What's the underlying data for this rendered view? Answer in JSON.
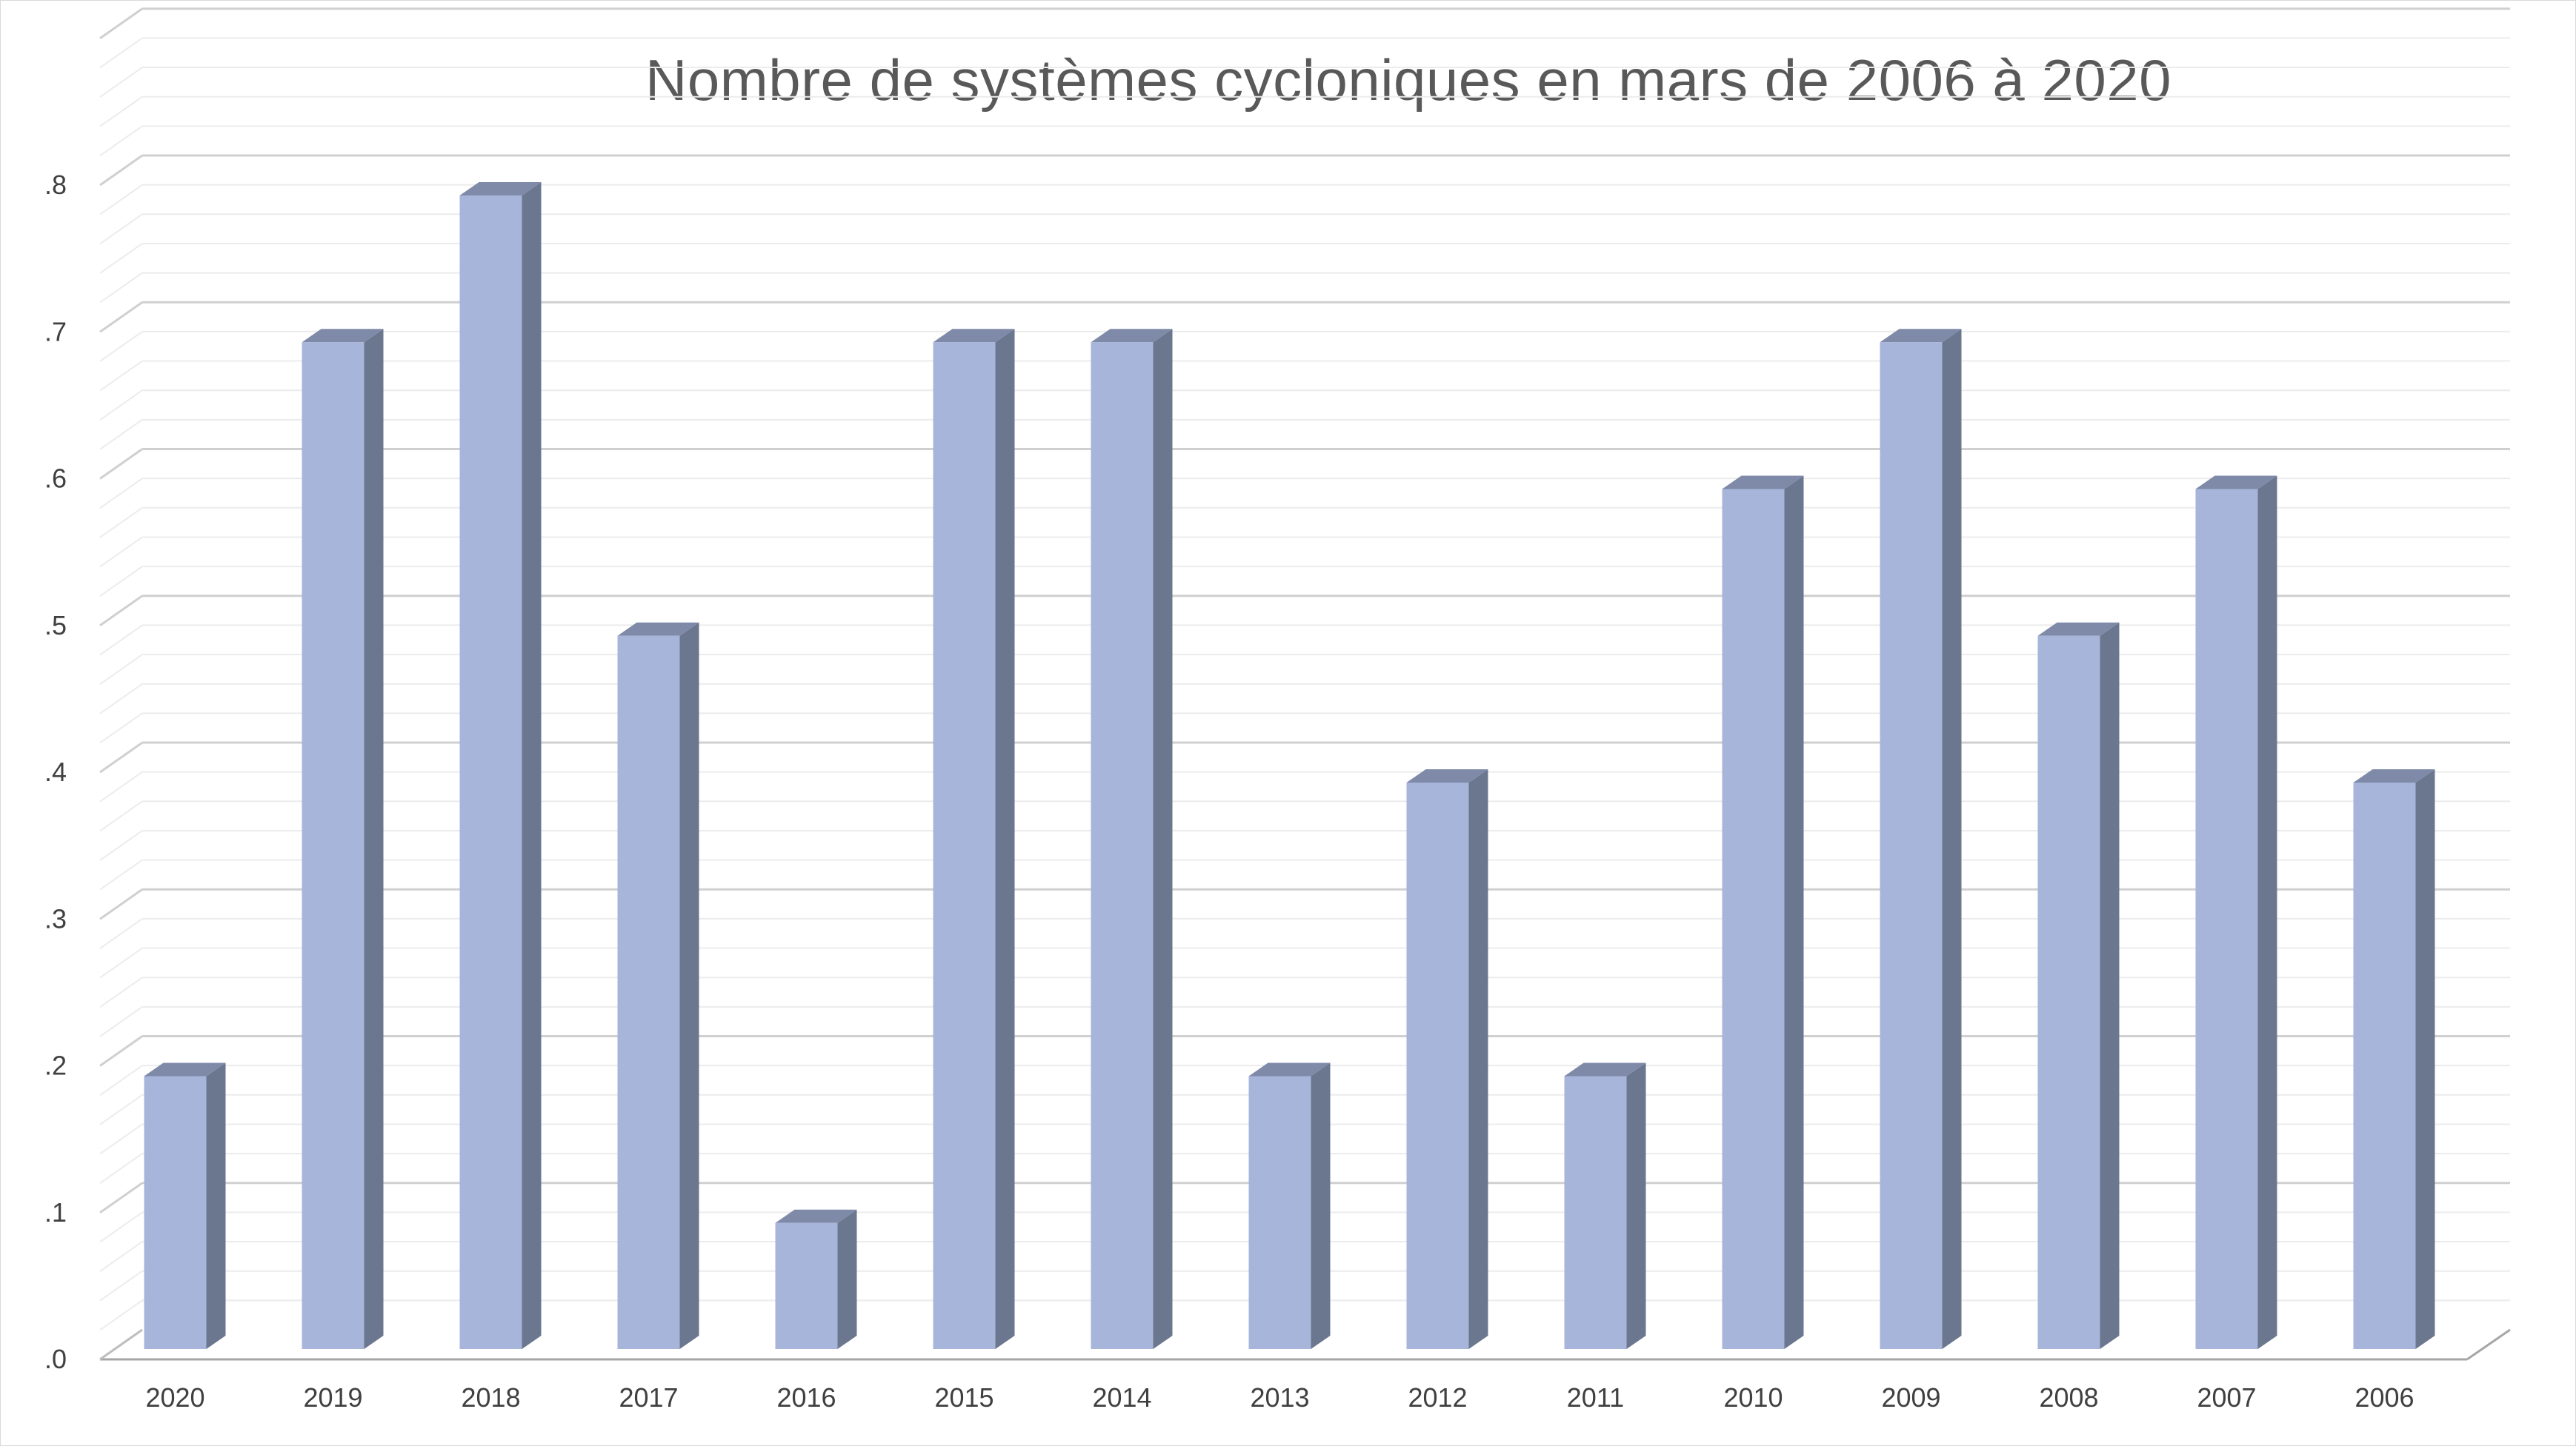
{
  "chart_data": {
    "type": "bar",
    "title": "Nombre de systèmes cycloniques en mars de 2006 à 2020",
    "xlabel": "",
    "ylabel": "",
    "categories": [
      "2020",
      "2019",
      "2018",
      "2017",
      "2016",
      "2015",
      "2014",
      "2013",
      "2012",
      "2011",
      "2010",
      "2009",
      "2008",
      "2007",
      "2006"
    ],
    "values": [
      0.2,
      0.7,
      0.8,
      0.5,
      0.1,
      0.7,
      0.7,
      0.2,
      0.4,
      0.2,
      0.6,
      0.7,
      0.5,
      0.6,
      0.4
    ],
    "y_ticks": [
      ".0",
      ".1",
      ".2",
      ".3",
      ".4",
      ".5",
      ".6",
      ".7",
      ".8"
    ],
    "ylim": [
      0,
      0.8
    ],
    "grid": true,
    "style": "3d-column",
    "legend": "none",
    "colors": {
      "bar_front": "#a8b5da",
      "bar_side": "#6b778f",
      "bar_top": "#7e8aa8",
      "gridline_major": "#d0d0d0",
      "gridline_minor": "#ececec"
    }
  }
}
